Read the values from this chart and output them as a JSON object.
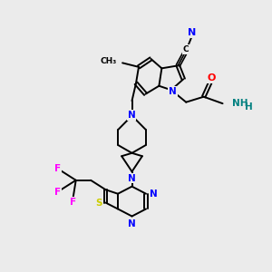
{
  "bg_color": "#ebebeb",
  "atom_colors": {
    "N": "#0000FF",
    "O": "#FF0000",
    "S": "#CCCC00",
    "F": "#FF00FF",
    "C": "#000000",
    "H": "#008080"
  },
  "bond_color": "#000000",
  "bond_width": 1.4,
  "figsize": [
    3.0,
    3.0
  ],
  "dpi": 100
}
